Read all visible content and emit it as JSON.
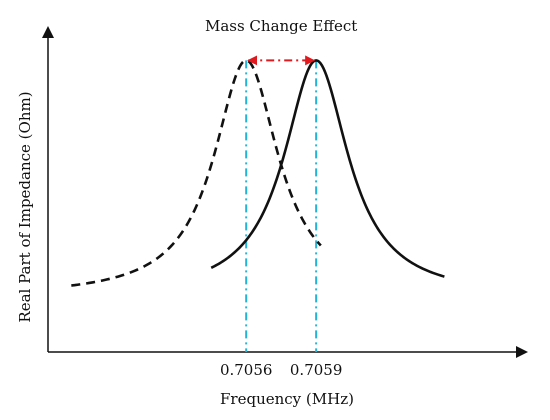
{
  "chart_data": {
    "type": "line",
    "title": "",
    "xlabel": "Frequency (MHz)",
    "ylabel": "Real Part of Impedance (Ohm)",
    "xlim": [
      0.70475,
      0.7068
    ],
    "ylim": [
      0,
      100
    ],
    "grid": false,
    "legend": "none",
    "x_ticks": [
      {
        "value": 0.7056,
        "label": "0.7056"
      },
      {
        "value": 0.7059,
        "label": "0.7059"
      }
    ],
    "series": [
      {
        "style": "dashed",
        "color": "#111111",
        "peak_x": 0.7056,
        "peak_y": 90,
        "baseline_y": 17,
        "half_width": 0.00025,
        "x_range": [
          0.70485,
          0.70592
        ]
      },
      {
        "style": "solid",
        "color": "#111111",
        "peak_x": 0.7059,
        "peak_y": 90,
        "baseline_y": 17,
        "half_width": 0.00025,
        "x_range": [
          0.70545,
          0.70645
        ]
      }
    ],
    "markers": [
      {
        "x": 0.7056,
        "color": "#1fb5d9",
        "style": "dash-dot"
      },
      {
        "x": 0.7059,
        "color": "#1fb5d9",
        "style": "dash-dot"
      }
    ],
    "annotations": [
      {
        "text": "Mass Change Effect",
        "arrow": {
          "from_x": 0.7056,
          "to_x": 0.7059,
          "y": 90,
          "color": "#e0191e",
          "style": "dash-dot",
          "double_headed": true
        }
      }
    ]
  }
}
